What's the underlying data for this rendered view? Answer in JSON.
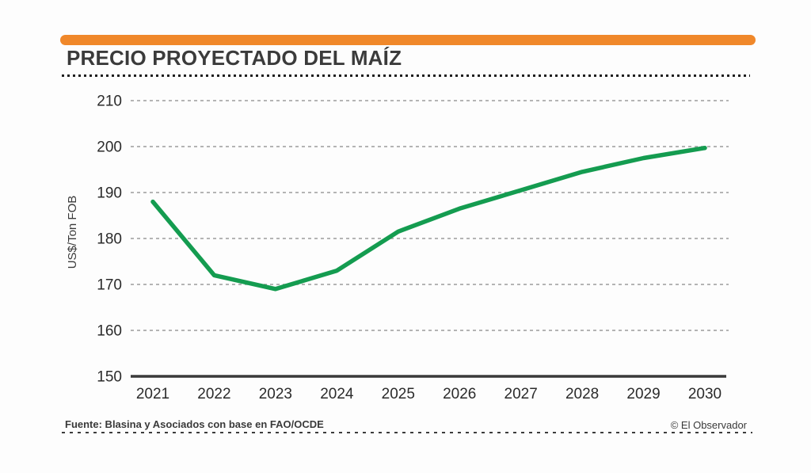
{
  "header": {
    "title": "PRECIO PROYECTADO DEL MAÍZ"
  },
  "footer": {
    "source": "Fuente: Blasina y Asociados con base en FAO/OCDE",
    "credit": "© El Observador"
  },
  "colors": {
    "accent_orange": "#f0882a",
    "line_green": "#149c50",
    "title_text": "#3b3b3b",
    "tick_text": "#2b2b2b",
    "grid_gray": "#9b9b9b",
    "axis_dark": "#3a3a3a"
  },
  "chart_data": {
    "type": "line",
    "title": "PRECIO PROYECTADO DEL MAÍZ",
    "xlabel": "",
    "ylabel": "US$/Ton FOB",
    "categories": [
      "2021",
      "2022",
      "2023",
      "2024",
      "2025",
      "2026",
      "2027",
      "2028",
      "2029",
      "2030"
    ],
    "values": [
      188,
      172,
      169,
      173,
      181.5,
      186.5,
      190.5,
      194.5,
      197.5,
      199.7
    ],
    "ylim": [
      150,
      210
    ],
    "yticks": [
      150,
      160,
      170,
      180,
      190,
      200,
      210
    ],
    "grid": "horizontal-dashed",
    "legend": "none",
    "line_color": "#149c50"
  }
}
